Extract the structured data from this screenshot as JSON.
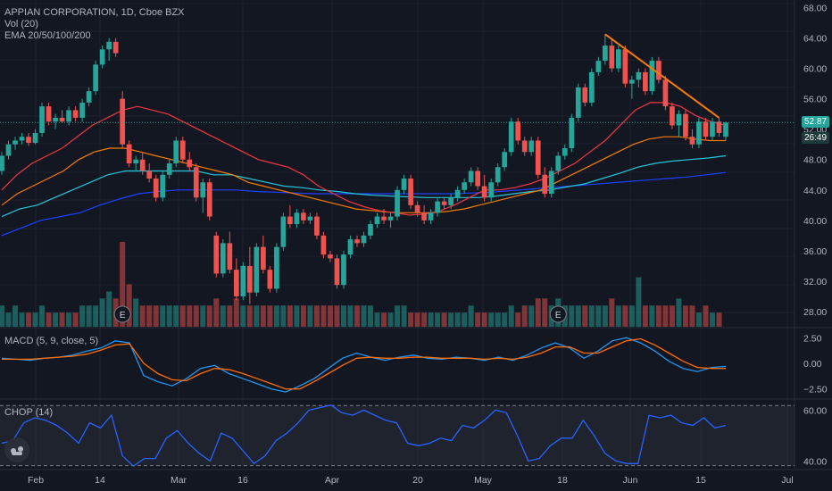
{
  "header": {
    "symbol_line": "APPIAN CORPORATION, 1D, Cboe BZX",
    "vol_line": "Vol (20)",
    "ema_line": "EMA 20/50/100/200"
  },
  "macd_label": "MACD (5, 9, close, 5)",
  "chop_label": "CHOP (14)",
  "price_badge": {
    "price": "52.87",
    "countdown": "26:49"
  },
  "colors": {
    "up": "#26a69a",
    "down": "#ef5350",
    "ema20": "#f23645",
    "ema50": "#f57c00",
    "ema100": "#26c6da",
    "ema200": "#1e40ff",
    "trendline": "#f57c00",
    "macd": "#2196f3",
    "signal": "#ff6d00",
    "chop": "#2962ff",
    "background": "#131722"
  },
  "icons": {
    "logo": "tradingview-logo-icon",
    "earnings": "earnings-marker-icon"
  },
  "earnings_label": "E",
  "axes": {
    "price_ticks": [
      "68.00",
      "64.00",
      "60.00",
      "56.00",
      "52.00",
      "48.00",
      "44.00",
      "40.00",
      "36.00",
      "32.00",
      "28.00"
    ],
    "macd_ticks": [
      "2.50",
      "0.00",
      "−2.50"
    ],
    "chop_ticks": [
      "60.00",
      "40.00"
    ],
    "x_ticks": [
      "Feb",
      "14",
      "Mar",
      "16",
      "Apr",
      "20",
      "May",
      "18",
      "Jun",
      "15",
      "Jul"
    ]
  },
  "chart_data": {
    "type": "candlestick",
    "title": "APPIAN CORPORATION, 1D, Cboe BZX",
    "price_range": [
      26,
      69
    ],
    "last_price": 52.87,
    "candles_ohlc": [
      [
        46.5,
        49.0,
        46.0,
        48.5
      ],
      [
        48.5,
        50.5,
        48.0,
        50.0
      ],
      [
        50.0,
        51.0,
        49.3,
        50.5
      ],
      [
        50.5,
        51.5,
        50.0,
        51.0
      ],
      [
        51.0,
        51.5,
        49.8,
        50.2
      ],
      [
        50.2,
        52.0,
        50.0,
        51.5
      ],
      [
        51.5,
        55.5,
        51.0,
        55.0
      ],
      [
        55.0,
        55.5,
        52.5,
        53.0
      ],
      [
        53.0,
        54.0,
        52.0,
        53.5
      ],
      [
        53.5,
        54.5,
        52.8,
        53.0
      ],
      [
        53.0,
        55.0,
        52.5,
        54.5
      ],
      [
        54.5,
        55.0,
        53.0,
        53.5
      ],
      [
        53.5,
        56.0,
        53.0,
        55.5
      ],
      [
        55.5,
        57.5,
        55.0,
        57.0
      ],
      [
        57.0,
        61.0,
        56.5,
        60.5
      ],
      [
        60.5,
        63.0,
        60.0,
        62.5
      ],
      [
        62.5,
        64.0,
        61.0,
        63.5
      ],
      [
        63.5,
        64.0,
        61.5,
        62.0
      ],
      [
        56.0,
        57.0,
        49.5,
        50.0
      ],
      [
        50.0,
        50.5,
        47.0,
        47.5
      ],
      [
        47.5,
        48.5,
        46.5,
        48.0
      ],
      [
        48.0,
        49.0,
        46.0,
        46.5
      ],
      [
        46.5,
        47.5,
        45.0,
        45.5
      ],
      [
        45.5,
        46.0,
        42.5,
        43.0
      ],
      [
        43.0,
        46.5,
        42.5,
        46.0
      ],
      [
        46.0,
        48.0,
        45.5,
        47.5
      ],
      [
        47.5,
        51.0,
        47.0,
        50.5
      ],
      [
        50.5,
        51.0,
        47.5,
        48.0
      ],
      [
        48.0,
        49.0,
        46.5,
        47.0
      ],
      [
        47.0,
        47.5,
        42.5,
        43.0
      ],
      [
        43.0,
        45.5,
        41.0,
        45.0
      ],
      [
        45.0,
        45.5,
        40.0,
        40.5
      ],
      [
        38.0,
        38.5,
        32.5,
        33.0
      ],
      [
        33.0,
        37.5,
        32.5,
        37.0
      ],
      [
        37.0,
        38.5,
        33.0,
        33.5
      ],
      [
        33.5,
        35.0,
        29.5,
        30.0
      ],
      [
        30.0,
        34.5,
        29.5,
        34.0
      ],
      [
        34.0,
        36.5,
        29.0,
        30.5
      ],
      [
        30.5,
        37.0,
        30.0,
        36.5
      ],
      [
        36.5,
        38.0,
        33.0,
        33.5
      ],
      [
        33.5,
        34.0,
        30.5,
        31.0
      ],
      [
        31.0,
        37.0,
        30.5,
        36.5
      ],
      [
        36.5,
        41.0,
        36.0,
        40.5
      ],
      [
        40.5,
        42.0,
        39.0,
        39.5
      ],
      [
        39.5,
        41.5,
        39.0,
        41.0
      ],
      [
        41.0,
        41.5,
        39.5,
        40.0
      ],
      [
        40.0,
        41.0,
        39.5,
        40.5
      ],
      [
        40.5,
        41.0,
        37.5,
        38.0
      ],
      [
        38.0,
        38.5,
        35.0,
        35.5
      ],
      [
        35.5,
        36.0,
        34.5,
        35.0
      ],
      [
        35.0,
        35.5,
        31.0,
        31.5
      ],
      [
        31.5,
        36.0,
        31.0,
        35.5
      ],
      [
        35.5,
        38.0,
        35.0,
        37.5
      ],
      [
        37.5,
        38.0,
        36.5,
        37.0
      ],
      [
        37.0,
        38.5,
        36.5,
        38.0
      ],
      [
        38.0,
        40.0,
        37.5,
        39.5
      ],
      [
        39.5,
        41.0,
        39.0,
        40.5
      ],
      [
        40.5,
        41.5,
        39.5,
        40.0
      ],
      [
        40.0,
        41.0,
        39.0,
        40.5
      ],
      [
        40.5,
        44.5,
        40.0,
        44.0
      ],
      [
        44.0,
        46.0,
        43.5,
        45.5
      ],
      [
        45.5,
        46.0,
        41.5,
        42.0
      ],
      [
        42.0,
        42.5,
        40.5,
        41.0
      ],
      [
        41.0,
        42.0,
        39.5,
        40.0
      ],
      [
        40.0,
        41.5,
        39.5,
        41.0
      ],
      [
        41.0,
        43.0,
        40.5,
        42.5
      ],
      [
        42.5,
        43.0,
        41.5,
        42.0
      ],
      [
        42.0,
        43.5,
        41.5,
        43.0
      ],
      [
        43.0,
        44.5,
        42.5,
        44.0
      ],
      [
        44.0,
        45.5,
        43.5,
        45.0
      ],
      [
        45.0,
        47.0,
        44.5,
        46.5
      ],
      [
        46.5,
        47.0,
        44.0,
        44.5
      ],
      [
        44.5,
        46.0,
        42.5,
        43.0
      ],
      [
        43.0,
        45.5,
        42.5,
        45.0
      ],
      [
        45.0,
        47.5,
        44.5,
        47.0
      ],
      [
        47.0,
        49.5,
        46.5,
        49.0
      ],
      [
        49.0,
        53.5,
        48.5,
        53.0
      ],
      [
        53.0,
        53.5,
        50.0,
        50.5
      ],
      [
        50.5,
        51.0,
        48.5,
        49.0
      ],
      [
        49.0,
        51.0,
        48.5,
        50.5
      ],
      [
        50.5,
        51.0,
        45.5,
        46.0
      ],
      [
        46.0,
        47.0,
        43.0,
        43.5
      ],
      [
        43.5,
        47.0,
        43.0,
        46.5
      ],
      [
        46.5,
        49.0,
        46.0,
        48.5
      ],
      [
        48.5,
        50.0,
        48.0,
        49.5
      ],
      [
        49.5,
        54.0,
        49.0,
        53.5
      ],
      [
        53.5,
        58.0,
        53.0,
        57.5
      ],
      [
        57.5,
        58.0,
        55.0,
        55.5
      ],
      [
        55.5,
        60.0,
        55.0,
        59.5
      ],
      [
        59.5,
        61.5,
        59.0,
        61.0
      ],
      [
        61.0,
        64.5,
        60.5,
        63.0
      ],
      [
        63.0,
        64.0,
        59.5,
        60.0
      ],
      [
        60.0,
        63.0,
        59.5,
        62.5
      ],
      [
        62.5,
        63.0,
        57.5,
        58.0
      ],
      [
        58.0,
        59.0,
        56.0,
        58.5
      ],
      [
        58.5,
        60.0,
        57.5,
        59.5
      ],
      [
        59.5,
        60.0,
        56.5,
        57.0
      ],
      [
        57.0,
        61.5,
        56.5,
        61.0
      ],
      [
        61.0,
        61.5,
        58.0,
        58.5
      ],
      [
        58.5,
        59.0,
        54.5,
        55.0
      ],
      [
        55.0,
        55.5,
        52.0,
        52.5
      ],
      [
        52.5,
        54.5,
        51.0,
        54.0
      ],
      [
        54.0,
        54.5,
        50.5,
        51.0
      ],
      [
        51.0,
        52.0,
        49.5,
        50.0
      ],
      [
        50.0,
        53.5,
        49.5,
        53.0
      ],
      [
        53.0,
        53.5,
        50.5,
        51.0
      ],
      [
        51.0,
        53.5,
        50.5,
        53.0
      ],
      [
        53.0,
        53.5,
        51.0,
        51.5
      ],
      [
        51.0,
        53.0,
        50.5,
        52.87
      ]
    ],
    "volume": [
      3,
      2,
      3,
      2,
      2,
      2,
      3,
      2,
      2,
      2,
      2,
      2,
      3,
      3,
      3,
      4,
      5,
      4,
      12,
      6,
      4,
      3,
      3,
      3,
      3,
      3,
      3,
      3,
      3,
      3,
      3,
      3,
      4,
      3,
      3,
      4,
      3,
      3,
      3,
      3,
      3,
      3,
      3,
      3,
      3,
      3,
      3,
      3,
      3,
      3,
      3,
      3,
      3,
      3,
      3,
      3,
      2,
      2,
      2,
      3,
      3,
      2,
      2,
      2,
      2,
      2,
      2,
      2,
      2,
      2,
      3,
      2,
      2,
      2,
      2,
      2,
      3,
      2,
      3,
      3,
      4,
      4,
      3,
      4,
      3,
      3,
      3,
      3,
      3,
      3,
      3,
      4,
      3,
      3,
      3,
      7,
      3,
      3,
      3,
      3,
      3,
      4,
      3,
      3,
      2,
      3,
      2,
      2
    ],
    "ema20": [
      44,
      46,
      47.5,
      48.5,
      49.5,
      51,
      52.5,
      53.5,
      54.5,
      55,
      54.5,
      54,
      53,
      52,
      51,
      50,
      49,
      48,
      47.5,
      47,
      46,
      44.5,
      43.5,
      42.5,
      41.8,
      41.3,
      41,
      40.7,
      40.8,
      41.2,
      42,
      43,
      44,
      44,
      44.3,
      44.8,
      45.5,
      46.5,
      47.5,
      49,
      50.5,
      52.5,
      54.5,
      55.5,
      55.5,
      55,
      53.8,
      53,
      52.5
    ],
    "ema50": [
      42,
      43.5,
      44.5,
      45.5,
      46.5,
      48,
      49,
      49.5,
      49.5,
      49,
      48.5,
      48,
      47.5,
      47,
      46.5,
      46,
      45,
      44.5,
      44,
      43.5,
      43,
      42.5,
      42,
      41.5,
      41.3,
      41.1,
      41,
      41,
      41,
      41.2,
      41.5,
      42,
      42.5,
      43,
      43.5,
      44,
      45,
      46,
      47,
      48,
      49,
      50,
      50.7,
      51,
      51,
      50.7,
      50.5,
      50.5
    ],
    "ema100": [
      40.5,
      41.5,
      42,
      43,
      44,
      45,
      46,
      46.5,
      46.5,
      46.5,
      46.5,
      46.5,
      46,
      46,
      45.5,
      45,
      44.5,
      44.3,
      44,
      43.8,
      43.5,
      43.3,
      43.2,
      43.1,
      43,
      43,
      43,
      43,
      43.2,
      43.5,
      43.8,
      44,
      44.4,
      44.8,
      45.5,
      46.2,
      47,
      47.5,
      47.8,
      48,
      48.2,
      48.5
    ],
    "ema200": [
      38,
      39,
      40,
      40.5,
      41,
      42,
      42.8,
      43.5,
      43.8,
      44,
      44,
      44,
      44,
      43.8,
      43.7,
      43.6,
      43.5,
      43.5,
      43.5,
      43.5,
      43.5,
      43.5,
      43.5,
      43.5,
      43.6,
      43.7,
      43.9,
      44.1,
      44.3,
      44.5,
      44.7,
      44.9,
      45.1,
      45.3,
      45.5,
      45.7,
      46,
      46.3
    ],
    "trendline": {
      "from": {
        "bar": 90,
        "price": 64.5
      },
      "to": {
        "bar": 107,
        "price": 53.5
      }
    },
    "earnings_markers_bar": [
      18,
      83
    ],
    "macd": [
      0.5,
      0.4,
      0.3,
      0.5,
      0.6,
      0.8,
      1.2,
      1.5,
      2.2,
      2.0,
      -1.2,
      -1.8,
      -2.2,
      -1.5,
      -0.5,
      -0.2,
      -1.0,
      -1.5,
      -2.0,
      -2.5,
      -2.8,
      -2.2,
      -1.5,
      -0.5,
      0.5,
      1.0,
      0.6,
      0.3,
      0.6,
      0.8,
      0.5,
      0.4,
      0.6,
      0.5,
      0.3,
      0.6,
      0.3,
      0.8,
      1.5,
      2.0,
      1.5,
      0.5,
      1.2,
      2.2,
      2.5,
      2.0,
      1.2,
      0.2,
      -0.5,
      -0.8,
      -0.4,
      -0.3
    ],
    "signal": [
      0.4,
      0.4,
      0.4,
      0.5,
      0.6,
      0.7,
      0.9,
      1.3,
      1.8,
      1.9,
      0.0,
      -1.0,
      -1.6,
      -1.7,
      -1.0,
      -0.5,
      -0.6,
      -1.0,
      -1.5,
      -2.0,
      -2.5,
      -2.5,
      -1.8,
      -1.0,
      -0.2,
      0.5,
      0.6,
      0.5,
      0.5,
      0.6,
      0.6,
      0.5,
      0.5,
      0.5,
      0.4,
      0.5,
      0.4,
      0.6,
      1.0,
      1.6,
      1.6,
      1.0,
      1.0,
      1.6,
      2.2,
      2.4,
      1.8,
      1.0,
      0.2,
      -0.4,
      -0.5,
      -0.5
    ],
    "macd_range": [
      -3.4,
      3.4
    ],
    "chop": [
      47,
      48,
      55,
      57,
      56,
      54,
      51,
      47,
      55,
      53,
      58,
      42,
      38,
      41,
      41,
      49,
      52,
      47,
      43,
      40,
      51,
      49,
      44,
      39,
      42,
      48,
      51,
      55,
      60,
      61,
      62,
      59,
      58,
      60,
      58,
      56,
      55,
      47,
      46,
      47,
      49,
      48,
      54,
      53,
      56,
      60,
      59,
      50,
      40,
      41,
      46,
      49,
      49,
      56,
      50,
      43,
      40,
      39,
      39,
      58,
      57,
      58,
      55,
      54,
      57,
      53,
      54
    ],
    "chop_range": [
      37,
      64
    ],
    "chop_bands": [
      61.8,
      38.2
    ]
  }
}
